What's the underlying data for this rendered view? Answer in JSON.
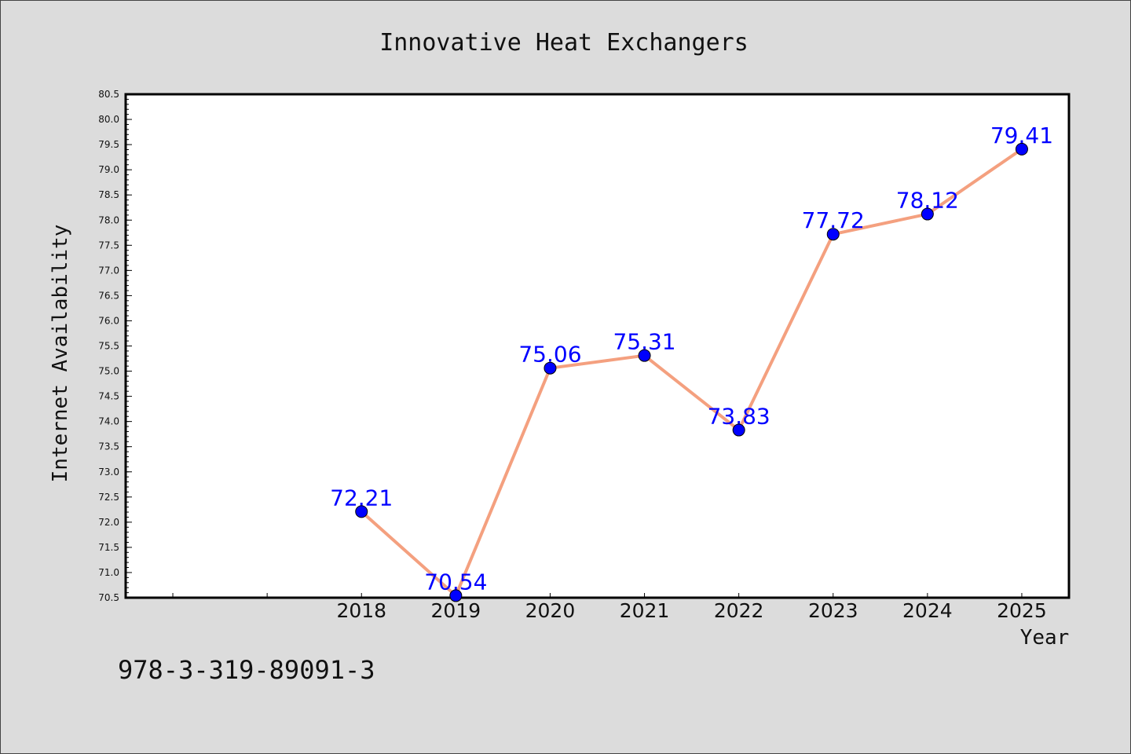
{
  "chart_data": {
    "type": "line",
    "title": "Innovative Heat Exchangers",
    "xlabel": "Year",
    "ylabel": "Internet Availability",
    "x": [
      "2018",
      "2019",
      "2020",
      "2021",
      "2022",
      "2023",
      "2024",
      "2025"
    ],
    "values": [
      72.21,
      70.54,
      75.06,
      75.31,
      73.83,
      77.72,
      78.12,
      79.41
    ],
    "data_labels": [
      "72.21",
      "70.54",
      "75.06",
      "75.31",
      "73.83",
      "77.72",
      "78.12",
      "79.41"
    ],
    "ylim": [
      70.5,
      80.5
    ],
    "y_ticks": [
      "70.5",
      "71.0",
      "71.5",
      "72.0",
      "72.5",
      "73.0",
      "73.5",
      "74.0",
      "74.5",
      "75.0",
      "75.5",
      "76.0",
      "76.5",
      "77.0",
      "77.5",
      "78.0",
      "78.5",
      "79.0",
      "79.5",
      "80.0",
      "80.5"
    ],
    "x_domain": [
      2015.5,
      2025.5
    ],
    "grid": false,
    "colors": {
      "line": "#f4a07f",
      "marker": "#0000ff",
      "label": "#0000ff",
      "background": "#dcdcdc",
      "plot_background": "#ffffff"
    }
  },
  "footer": {
    "isbn": "978-3-319-89091-3"
  }
}
